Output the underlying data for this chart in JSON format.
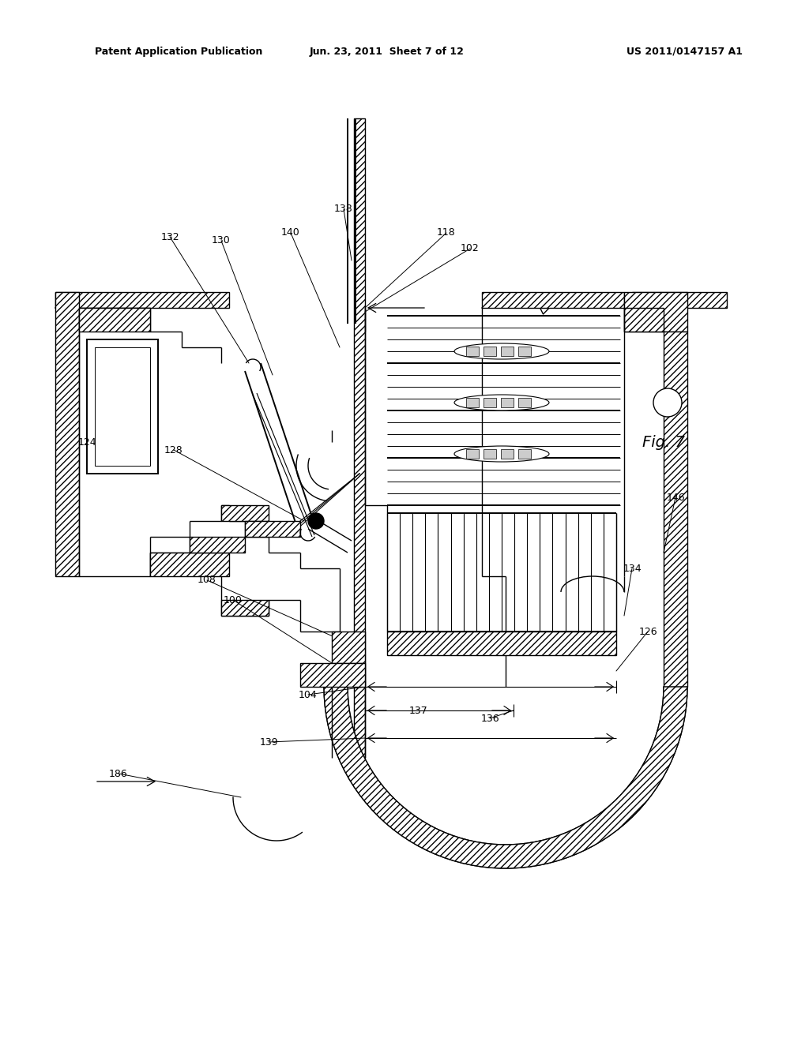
{
  "background_color": "#ffffff",
  "header_left": "Patent Application Publication",
  "header_center": "Jun. 23, 2011  Sheet 7 of 12",
  "header_right": "US 2011/0147157 A1",
  "fig_label": "Fig. 7",
  "text_color": "#000000"
}
